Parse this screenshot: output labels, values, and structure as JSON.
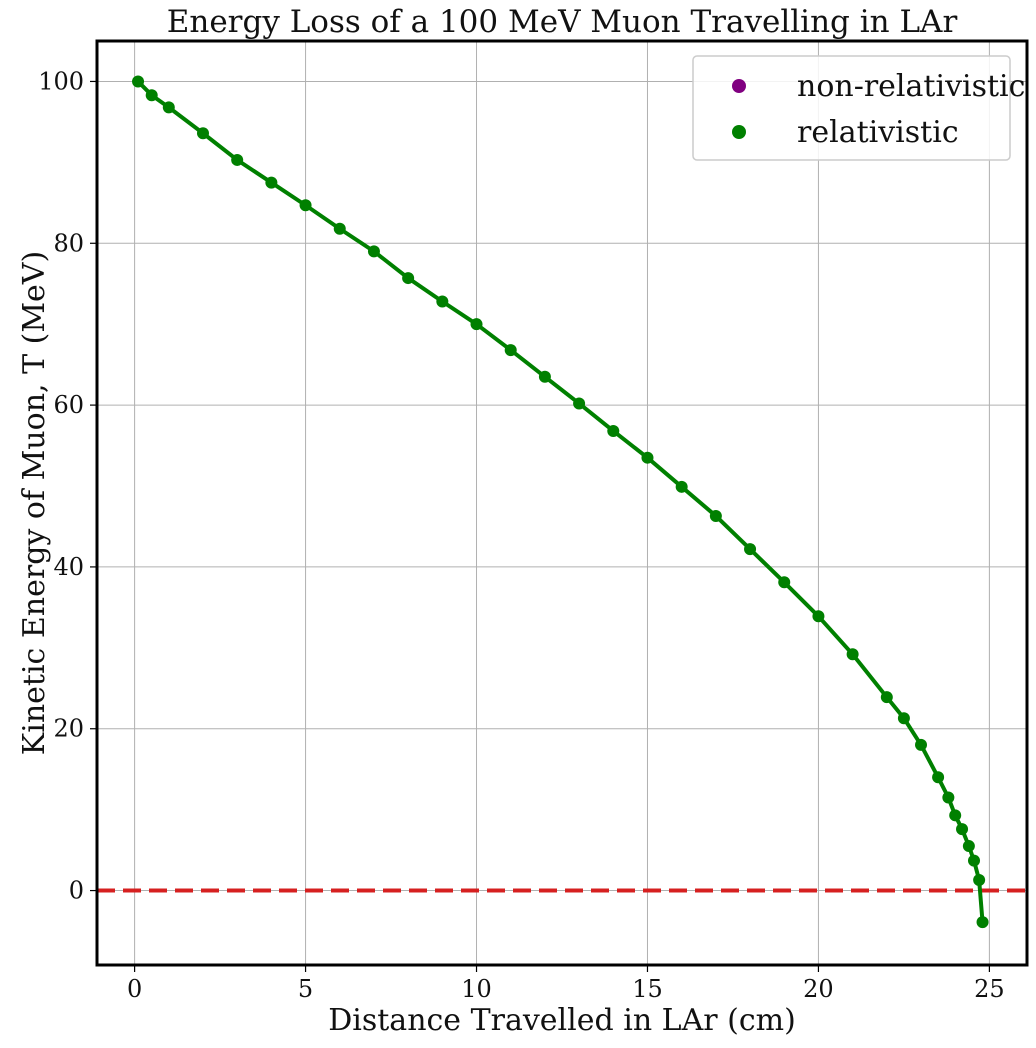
{
  "chart_data": {
    "type": "line",
    "title": "Energy Loss of a 100 MeV Muon Travelling in LAr",
    "xlabel": "Distance Travelled in LAr (cm)",
    "ylabel": "Kinetic Energy of Muon, T (MeV)",
    "xlim": [
      -1.1,
      26.1
    ],
    "ylim": [
      -9.2,
      105.0
    ],
    "xticks": [
      0,
      5,
      10,
      15,
      20,
      25
    ],
    "yticks": [
      0,
      20,
      40,
      60,
      80,
      100
    ],
    "grid": true,
    "legend_position": "top-right",
    "reference_line": {
      "y": 0,
      "style": "dashed",
      "color": "#d62020"
    },
    "series": [
      {
        "name": "non-relativistic",
        "color": "#800080",
        "marker": "circle",
        "points": []
      },
      {
        "name": "relativistic",
        "color": "#008000",
        "marker": "circle",
        "line": true,
        "points": [
          [
            0.1,
            100
          ],
          [
            0.5,
            98.3
          ],
          [
            1.0,
            96.8
          ],
          [
            2.0,
            93.6
          ],
          [
            3.0,
            90.3
          ],
          [
            4.0,
            87.5
          ],
          [
            5.0,
            84.7
          ],
          [
            6.0,
            81.8
          ],
          [
            7.0,
            79.0
          ],
          [
            8.0,
            75.7
          ],
          [
            9.0,
            72.8
          ],
          [
            10.0,
            70.0
          ],
          [
            11.0,
            66.8
          ],
          [
            12.0,
            63.5
          ],
          [
            13.0,
            60.2
          ],
          [
            14.0,
            56.8
          ],
          [
            15.0,
            53.5
          ],
          [
            16.0,
            49.9
          ],
          [
            17.0,
            46.3
          ],
          [
            18.0,
            42.2
          ],
          [
            19.0,
            38.1
          ],
          [
            20.0,
            33.9
          ],
          [
            21.0,
            29.2
          ],
          [
            22.0,
            23.9
          ],
          [
            22.5,
            21.3
          ],
          [
            23.0,
            18.0
          ],
          [
            23.5,
            14.0
          ],
          [
            23.8,
            11.5
          ],
          [
            24.0,
            9.3
          ],
          [
            24.2,
            7.6
          ],
          [
            24.4,
            5.5
          ],
          [
            24.55,
            3.7
          ],
          [
            24.7,
            1.3
          ],
          [
            24.8,
            -3.9
          ]
        ]
      }
    ]
  }
}
